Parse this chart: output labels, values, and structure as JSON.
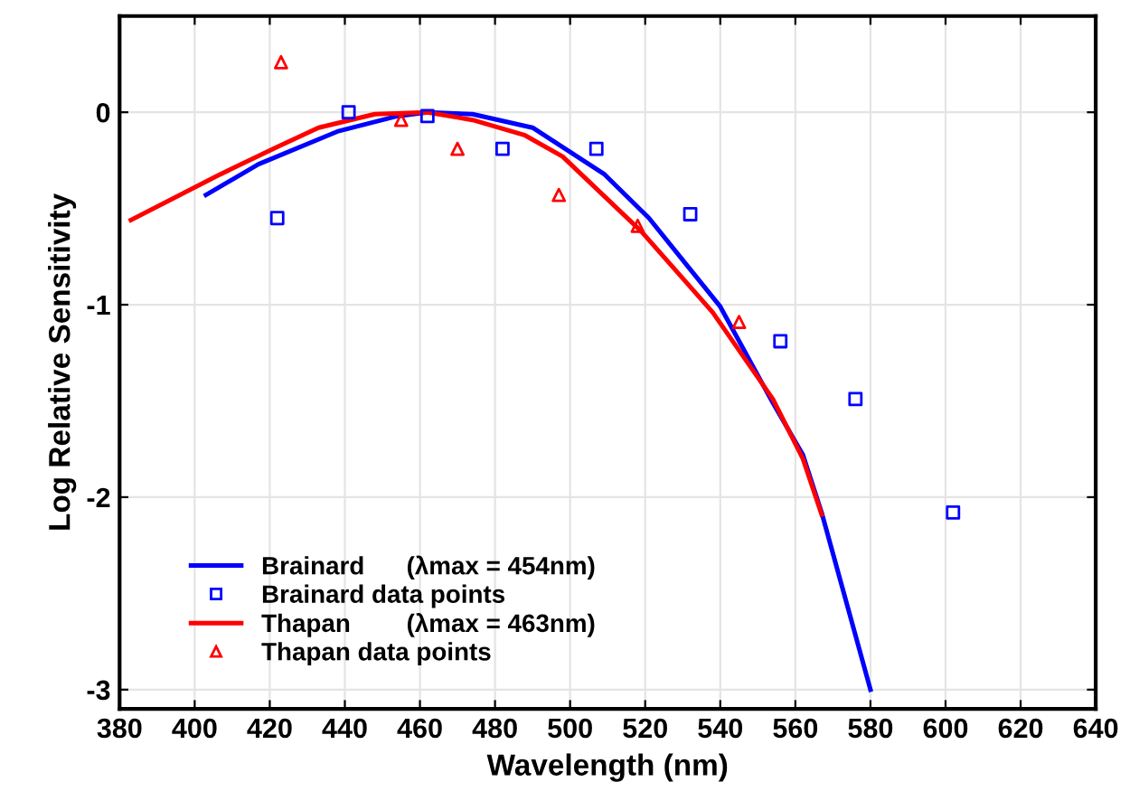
{
  "chart_data": {
    "type": "line",
    "xlabel": "Wavelength (nm)",
    "ylabel": "Log Relative Sensitivity",
    "xlim": [
      380,
      640
    ],
    "xticks": [
      380,
      400,
      420,
      440,
      460,
      480,
      500,
      520,
      540,
      560,
      580,
      600,
      620,
      640
    ],
    "ylim": [
      -3.1,
      0.5
    ],
    "yticks": [
      -3,
      -2,
      -1,
      0
    ],
    "grid": true,
    "legend": "bottom left",
    "series": [
      {
        "name": "Brainard      (λmax = 454nm)",
        "color": "#0000ff",
        "x": [
          403,
          417,
          438,
          454,
          462,
          474,
          490,
          509,
          521,
          540,
          554,
          562,
          567,
          580
        ],
        "values": [
          -0.43,
          -0.27,
          -0.1,
          -0.02,
          0,
          -0.01,
          -0.08,
          -0.32,
          -0.55,
          -1.01,
          -1.51,
          -1.78,
          -2.08,
          -3.0
        ]
      },
      {
        "name": "Brainard data points",
        "type": "scatter",
        "marker": "square",
        "color": "#0000ff",
        "x": [
          422,
          441,
          462,
          482,
          507,
          532,
          556,
          576,
          602
        ],
        "values": [
          -0.55,
          0.0,
          -0.02,
          -0.19,
          -0.19,
          -0.53,
          -1.19,
          -1.49,
          -2.08
        ]
      },
      {
        "name": "Thapan        (λmax = 463nm)",
        "color": "#ff0000",
        "x": [
          383,
          406,
          422,
          433,
          448,
          462,
          474,
          488,
          498,
          519,
          538,
          554,
          562,
          567
        ],
        "values": [
          -0.56,
          -0.33,
          -0.18,
          -0.08,
          -0.01,
          0,
          -0.04,
          -0.12,
          -0.23,
          -0.62,
          -1.04,
          -1.49,
          -1.8,
          -2.09
        ]
      },
      {
        "name": "Thapan data points",
        "type": "scatter",
        "marker": "triangle",
        "color": "#ff0000",
        "x": [
          423,
          455,
          470,
          497,
          518,
          545
        ],
        "values": [
          0.26,
          -0.04,
          -0.19,
          -0.43,
          -0.59,
          -1.09
        ]
      }
    ]
  }
}
